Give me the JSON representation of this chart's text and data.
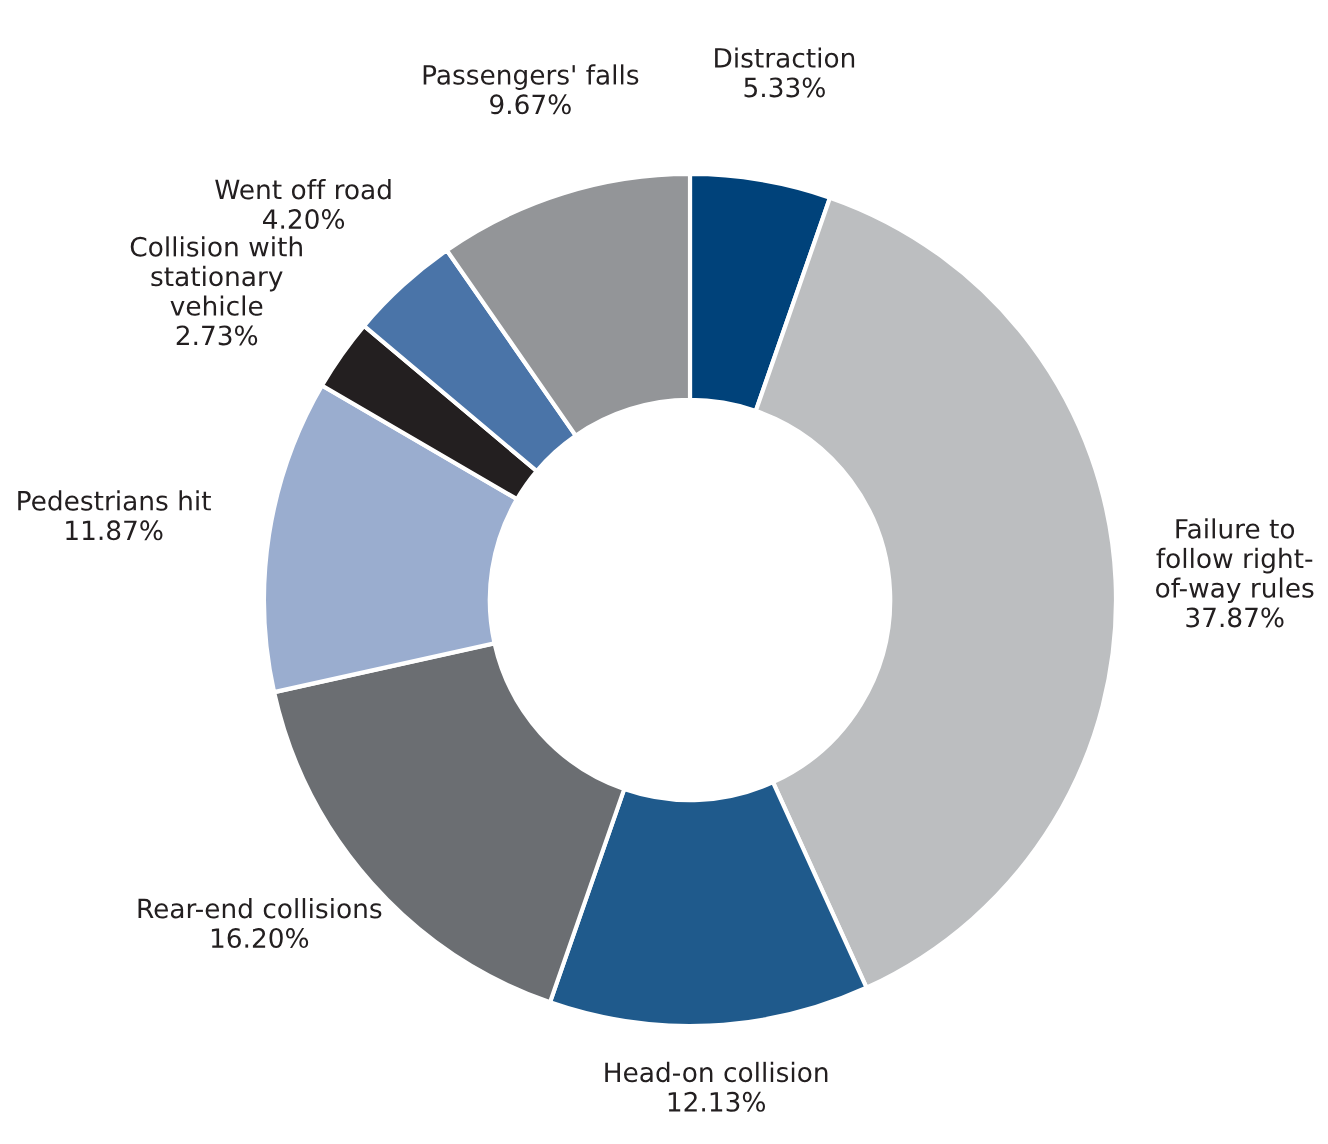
{
  "chart_data": {
    "type": "donut",
    "categories": [
      "Distraction",
      "Failure to\nfollow right-\nof-way rules",
      "Head-on collision",
      "Rear-end collisions",
      "Pedestrians hit",
      "Collision with\nstationary\nvehicle",
      "Went off road",
      "Passengers' falls"
    ],
    "values": [
      5.33,
      37.87,
      12.13,
      16.2,
      11.87,
      2.73,
      4.2,
      9.67
    ],
    "value_labels": [
      "5.33%",
      "37.87%",
      "12.13%",
      "16.20%",
      "11.87%",
      "2.73%",
      "4.20%",
      "9.67%"
    ],
    "colors": [
      "#00427a",
      "#bcbec0",
      "#1f5a8c",
      "#6b6e72",
      "#9aadcf",
      "#231f20",
      "#4a74a8",
      "#939598"
    ]
  }
}
